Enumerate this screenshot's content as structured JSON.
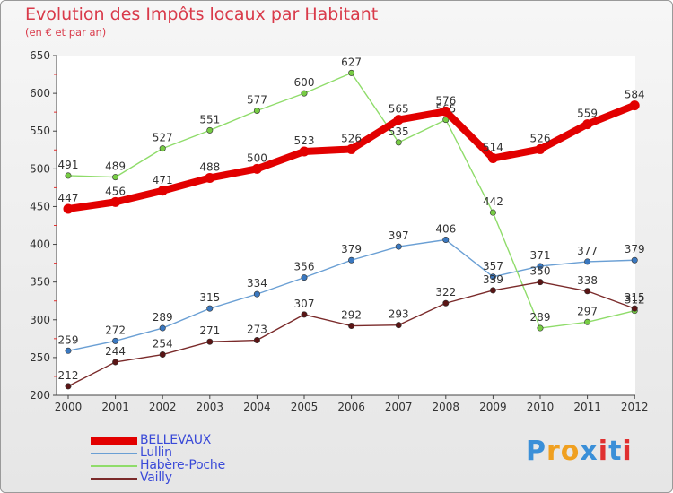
{
  "header": {
    "title": "Evolution des Impôts locaux par Habitant",
    "subtitle": "(en € et par an)"
  },
  "brand": {
    "letters": [
      "P",
      "r",
      "o",
      "x",
      "i",
      "t",
      "i"
    ],
    "letter_colors": [
      "#3a8fd8",
      "#f0a020",
      "#f0a020",
      "#3a8fd8",
      "#e03030",
      "#3a8fd8",
      "#e03030"
    ]
  },
  "chart_data": {
    "type": "line",
    "title": "Evolution des Impôts locaux par Habitant",
    "subtitle": "(en € et par an)",
    "xlabel": "",
    "ylabel": "",
    "ylim": [
      200,
      650
    ],
    "yticks": [
      200,
      250,
      300,
      350,
      400,
      450,
      500,
      550,
      600,
      650
    ],
    "grid": false,
    "legend": "bottom-left",
    "categories": [
      "2000",
      "2001",
      "2002",
      "2003",
      "2004",
      "2005",
      "2006",
      "2007",
      "2008",
      "2009",
      "2010",
      "2011",
      "2012"
    ],
    "series": [
      {
        "name": "BELLEVAUX",
        "color": "#e20000",
        "marker": "#e20000",
        "width": "thick",
        "values": [
          447,
          456,
          471,
          488,
          500,
          523,
          526,
          565,
          576,
          514,
          526,
          559,
          584
        ]
      },
      {
        "name": "Lullin",
        "color": "#6a9fd4",
        "marker": "#3a78c0",
        "width": "thin",
        "values": [
          259,
          272,
          289,
          315,
          334,
          356,
          379,
          397,
          406,
          357,
          371,
          377,
          379
        ]
      },
      {
        "name": "Habère-Poche",
        "color": "#8fdc6a",
        "marker": "#77cc44",
        "width": "thin",
        "values": [
          491,
          489,
          527,
          551,
          577,
          600,
          627,
          535,
          565,
          442,
          289,
          297,
          312
        ]
      },
      {
        "name": "Vailly",
        "color": "#7a2a2a",
        "marker": "#5a1515",
        "width": "thin",
        "values": [
          212,
          244,
          254,
          271,
          273,
          307,
          292,
          293,
          322,
          339,
          350,
          338,
          315
        ]
      }
    ]
  }
}
